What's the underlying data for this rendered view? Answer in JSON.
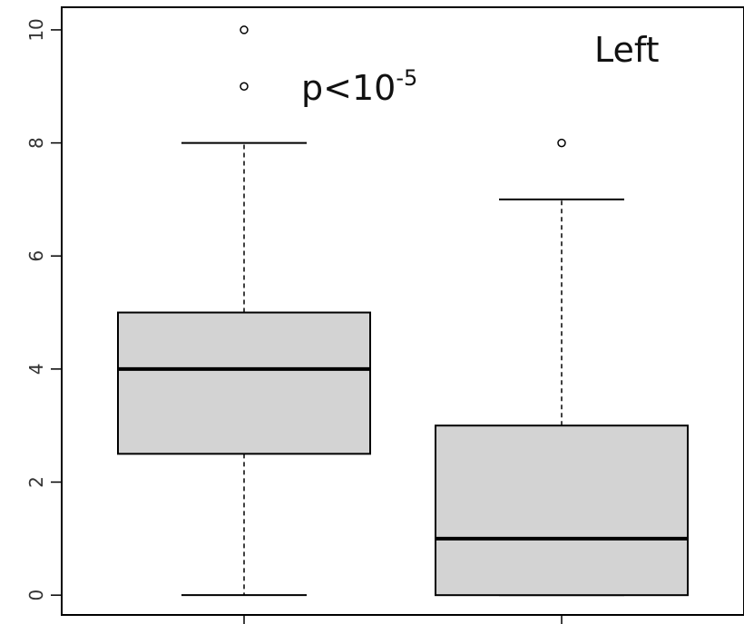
{
  "chart_data": {
    "type": "box",
    "title": "",
    "xlabel": "",
    "ylabel": "",
    "ylim": [
      -0.35,
      10.4
    ],
    "y_ticks": [
      0,
      2,
      4,
      6,
      8,
      10
    ],
    "y_tick_labels": [
      "0",
      "2",
      "4",
      "6",
      "8",
      "10"
    ],
    "grid": false,
    "boxes": [
      {
        "min": 0,
        "q1": 2.5,
        "median": 4,
        "q3": 5,
        "max": 8,
        "outliers": [
          9,
          10
        ]
      },
      {
        "min": 0,
        "q1": 0,
        "median": 1,
        "q3": 3,
        "max": 7,
        "outliers": [
          8
        ]
      }
    ],
    "annotations": {
      "title_text": "Left",
      "p_prefix": "p<10",
      "p_exponent": "-5"
    },
    "colors": {
      "box_fill": "#d3d3d3",
      "stroke": "#000000"
    }
  }
}
